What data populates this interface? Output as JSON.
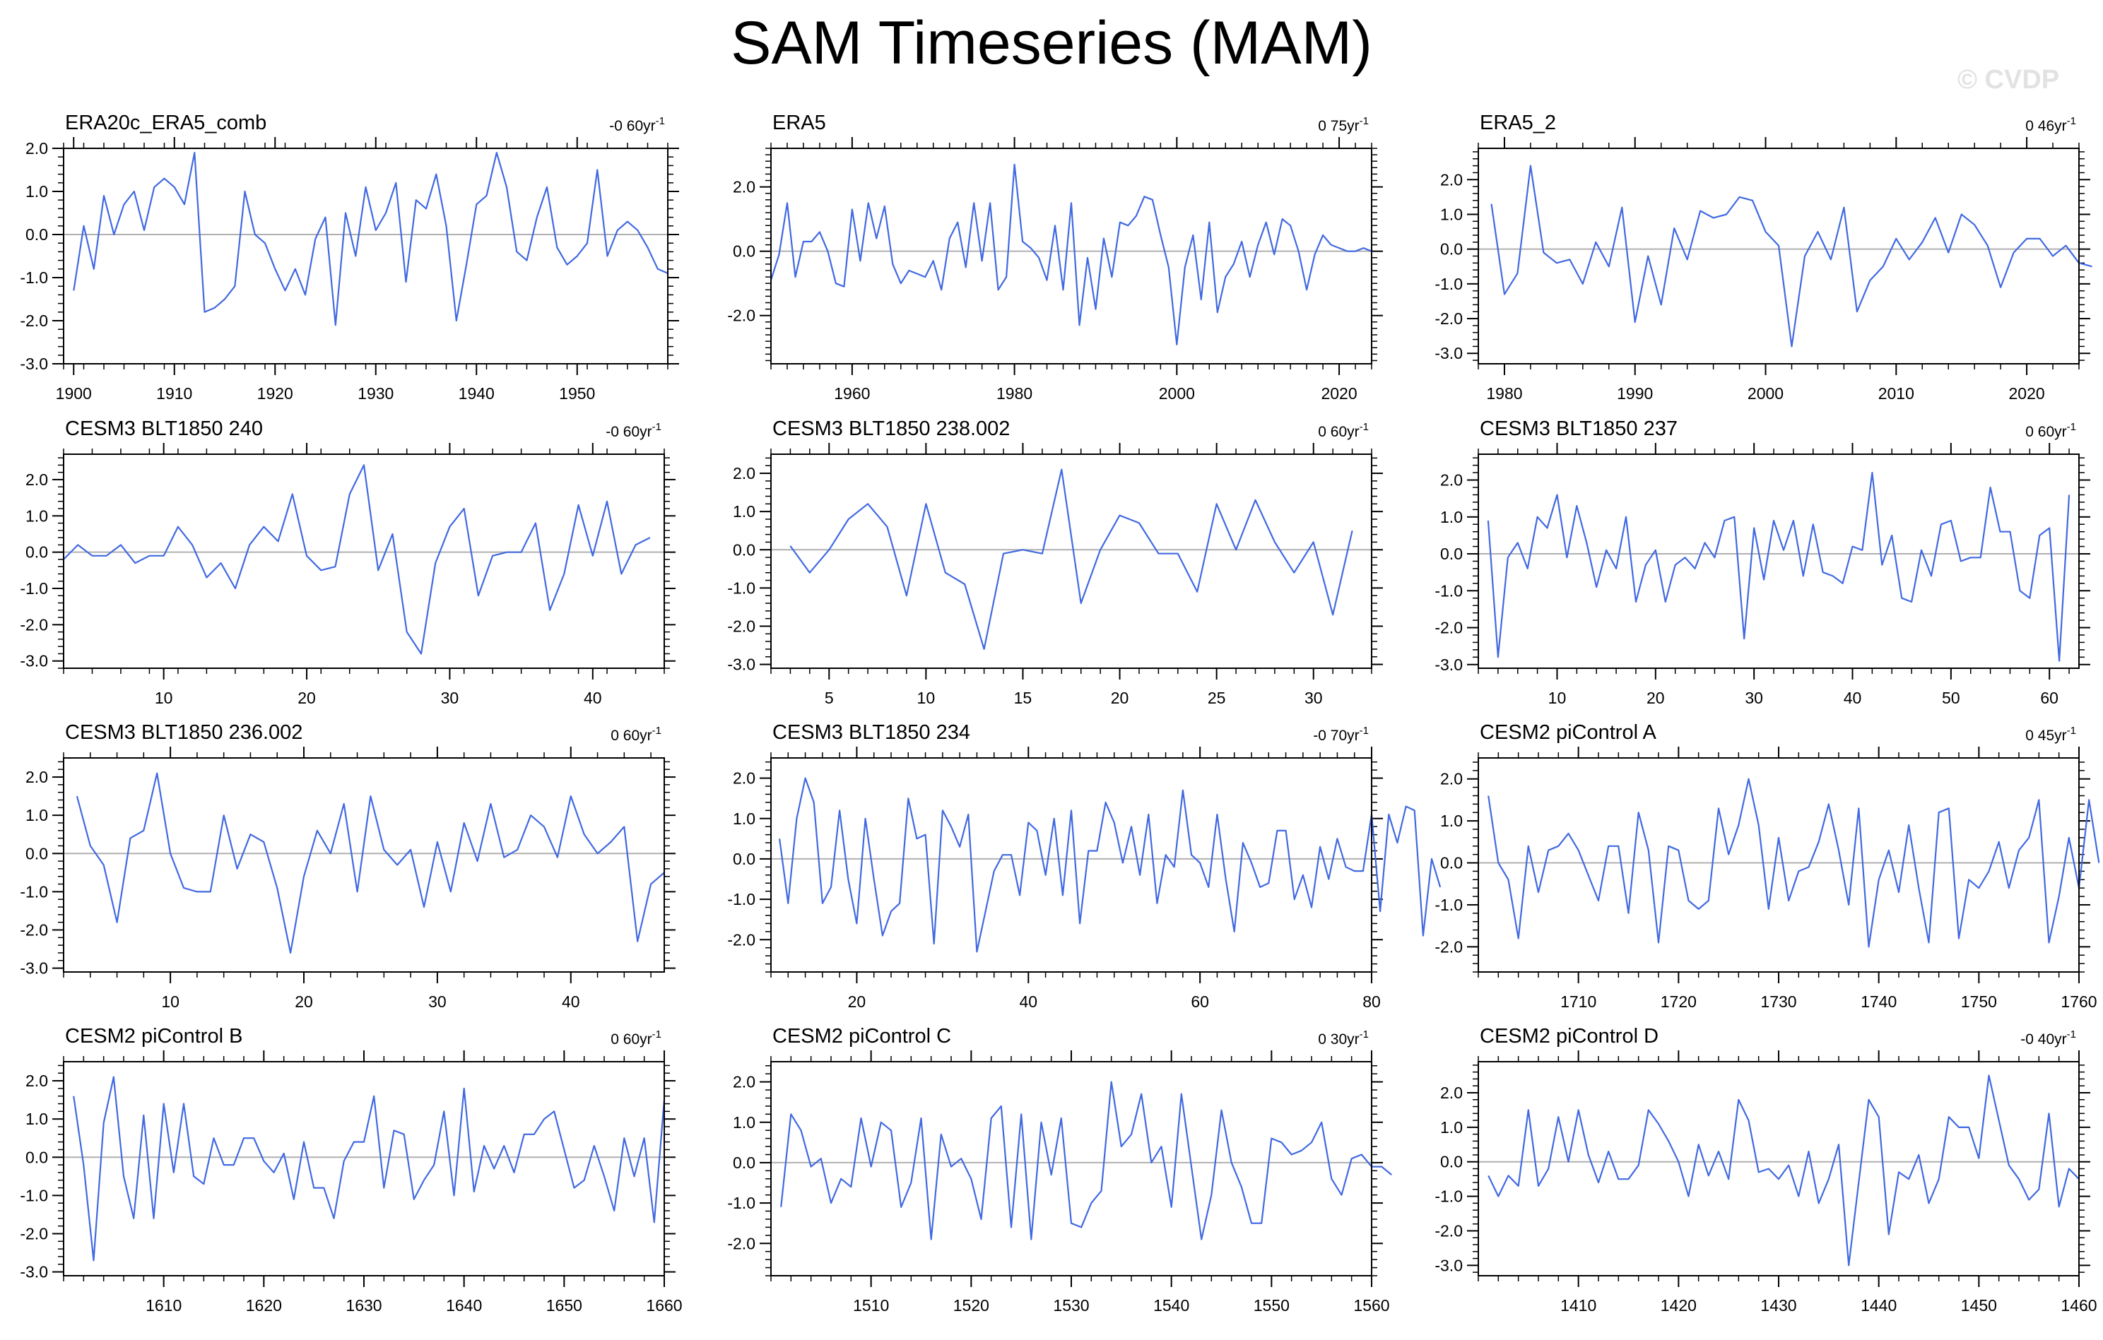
{
  "title": "SAM Timeseries (MAM)",
  "watermark": "© CVDP",
  "colors": {
    "line": "#4169e1",
    "zero": "#b0b0b0",
    "axis": "#000000"
  },
  "chart_data": [
    {
      "type": "line",
      "title": "ERA20c_ERA5_comb",
      "trend": "-0 60yr",
      "trend_sup": "-1",
      "xlim": [
        1899,
        1959
      ],
      "ylim": [
        -3,
        2
      ],
      "yticks": [
        2,
        1,
        0,
        -1,
        -2,
        -3
      ],
      "ytick_labels": [
        "2.0",
        "1.0",
        "0.0",
        "-1.0",
        "-2.0",
        "-3.0"
      ],
      "xticks": [
        1900,
        1910,
        1920,
        1930,
        1940,
        1950
      ],
      "x_start": 1900,
      "values": [
        -1.3,
        0.2,
        -0.8,
        0.9,
        0.0,
        0.7,
        1.0,
        0.1,
        1.1,
        1.3,
        1.1,
        0.7,
        1.9,
        -1.8,
        -1.7,
        -1.5,
        -1.2,
        1.0,
        0.0,
        -0.2,
        -0.8,
        -1.3,
        -0.8,
        -1.4,
        -0.1,
        0.4,
        -2.1,
        0.5,
        -0.5,
        1.1,
        0.1,
        0.5,
        1.2,
        -1.1,
        0.8,
        0.6,
        1.4,
        0.2,
        -2.0,
        -0.7,
        0.7,
        0.9,
        1.9,
        1.1,
        -0.4,
        -0.6,
        0.4,
        1.1,
        -0.3,
        -0.7,
        -0.5,
        -0.2,
        1.5,
        -0.5,
        0.1,
        0.3,
        0.1,
        -0.3,
        -0.8,
        -0.9
      ]
    },
    {
      "type": "line",
      "title": "ERA5",
      "trend": "0 75yr",
      "trend_sup": "-1",
      "xlim": [
        1950,
        2024
      ],
      "ylim": [
        -3.5,
        3.2
      ],
      "yticks": [
        2,
        0,
        -2
      ],
      "ytick_labels": [
        "2.0",
        "0.0",
        "-2.0"
      ],
      "xticks": [
        1960,
        1980,
        2000,
        2020
      ],
      "x_start": 1950,
      "values": [
        -0.9,
        -0.1,
        1.5,
        -0.8,
        0.3,
        0.3,
        0.6,
        0.0,
        -1.0,
        -1.1,
        1.3,
        -0.3,
        1.5,
        0.4,
        1.4,
        -0.4,
        -1.0,
        -0.6,
        -0.7,
        -0.8,
        -0.3,
        -1.2,
        0.4,
        0.9,
        -0.5,
        1.5,
        -0.3,
        1.5,
        -1.2,
        -0.8,
        2.7,
        0.3,
        0.1,
        -0.2,
        -0.9,
        0.8,
        -1.2,
        1.5,
        -2.3,
        -0.2,
        -1.8,
        0.4,
        -0.8,
        0.9,
        0.8,
        1.1,
        1.7,
        1.6,
        0.5,
        -0.5,
        -2.9,
        -0.5,
        0.5,
        -1.5,
        0.9,
        -1.9,
        -0.8,
        -0.4,
        0.3,
        -0.8,
        0.2,
        0.9,
        -0.1,
        1.0,
        0.8,
        0.0,
        -1.2,
        -0.1,
        0.5,
        0.2,
        0.1,
        0.0,
        0.0,
        0.1,
        0.0
      ]
    },
    {
      "type": "line",
      "title": "ERA5_2",
      "trend": "0 46yr",
      "trend_sup": "-1",
      "xlim": [
        1978,
        2024
      ],
      "ylim": [
        -3.3,
        2.9
      ],
      "yticks": [
        2,
        1,
        0,
        -1,
        -2,
        -3
      ],
      "ytick_labels": [
        "2.0",
        "1.0",
        "0.0",
        "-1.0",
        "-2.0",
        "-3.0"
      ],
      "xticks": [
        1980,
        1990,
        2000,
        2010,
        2020
      ],
      "x_start": 1979,
      "values": [
        1.3,
        -1.3,
        -0.7,
        2.4,
        -0.1,
        -0.4,
        -0.3,
        -1.0,
        0.2,
        -0.5,
        1.2,
        -2.1,
        -0.2,
        -1.6,
        0.6,
        -0.3,
        1.1,
        0.9,
        1.0,
        1.5,
        1.4,
        0.5,
        0.1,
        -2.8,
        -0.2,
        0.5,
        -0.3,
        1.2,
        -1.8,
        -0.9,
        -0.5,
        0.3,
        -0.3,
        0.2,
        0.9,
        -0.1,
        1.0,
        0.7,
        0.1,
        -1.1,
        -0.1,
        0.3,
        0.3,
        -0.2,
        0.1,
        -0.4,
        -0.5
      ]
    },
    {
      "type": "line",
      "title": "CESM3 BLT1850 240",
      "trend": "-0 60yr",
      "trend_sup": "-1",
      "xlim": [
        3,
        45
      ],
      "ylim": [
        -3.2,
        2.7
      ],
      "yticks": [
        2,
        1,
        0,
        -1,
        -2,
        -3
      ],
      "ytick_labels": [
        "2.0",
        "1.0",
        "0.0",
        "-1.0",
        "-2.0",
        "-3.0"
      ],
      "xticks": [
        10,
        20,
        30,
        40
      ],
      "x_start": 3,
      "values": [
        -0.2,
        0.2,
        -0.1,
        -0.1,
        0.2,
        -0.3,
        -0.1,
        -0.1,
        0.7,
        0.2,
        -0.7,
        -0.3,
        -1.0,
        0.2,
        0.7,
        0.3,
        1.6,
        -0.1,
        -0.5,
        -0.4,
        1.6,
        2.4,
        -0.5,
        0.5,
        -2.2,
        -2.8,
        -0.3,
        0.7,
        1.2,
        -1.2,
        -0.1,
        0.0,
        0.0,
        0.8,
        -1.6,
        -0.6,
        1.3,
        -0.1,
        1.4,
        -0.6,
        0.2,
        0.4
      ]
    },
    {
      "type": "line",
      "title": "CESM3 BLT1850 238.002",
      "trend": "0 60yr",
      "trend_sup": "-1",
      "xlim": [
        2,
        33
      ],
      "ylim": [
        -3.1,
        2.5
      ],
      "yticks": [
        2,
        1,
        0,
        -1,
        -2,
        -3
      ],
      "ytick_labels": [
        "2.0",
        "1.0",
        "0.0",
        "-1.0",
        "-2.0",
        "-3.0"
      ],
      "xticks": [
        5,
        10,
        15,
        20,
        25,
        30
      ],
      "x_start": 3,
      "values": [
        0.1,
        -0.6,
        0.0,
        0.8,
        1.2,
        0.6,
        -1.2,
        1.2,
        -0.6,
        -0.9,
        -2.6,
        -0.1,
        0.0,
        -0.1,
        2.1,
        -1.4,
        0.0,
        0.9,
        0.7,
        -0.1,
        -0.1,
        -1.1,
        1.2,
        0.0,
        1.3,
        0.2,
        -0.6,
        0.2,
        -1.7,
        0.5
      ]
    },
    {
      "type": "line",
      "title": "CESM3 BLT1850 237",
      "trend": "0 60yr",
      "trend_sup": "-1",
      "xlim": [
        2,
        63
      ],
      "ylim": [
        -3.1,
        2.7
      ],
      "yticks": [
        2,
        1,
        0,
        -1,
        -2,
        -3
      ],
      "ytick_labels": [
        "2.0",
        "1.0",
        "0.0",
        "-1.0",
        "-2.0",
        "-3.0"
      ],
      "xticks": [
        10,
        20,
        30,
        40,
        50,
        60
      ],
      "x_start": 3,
      "values": [
        0.9,
        -2.8,
        -0.1,
        0.3,
        -0.4,
        1.0,
        0.7,
        1.6,
        -0.1,
        1.3,
        0.3,
        -0.9,
        0.1,
        -0.4,
        1.0,
        -1.3,
        -0.3,
        0.1,
        -1.3,
        -0.3,
        -0.1,
        -0.4,
        0.3,
        -0.1,
        0.9,
        1.0,
        -2.3,
        0.7,
        -0.7,
        0.9,
        0.1,
        0.9,
        -0.6,
        0.8,
        -0.5,
        -0.6,
        -0.8,
        0.2,
        0.1,
        2.2,
        -0.3,
        0.5,
        -1.2,
        -1.3,
        0.1,
        -0.6,
        0.8,
        0.9,
        -0.2,
        -0.1,
        -0.1,
        1.8,
        0.6,
        0.6,
        -1.0,
        -1.2,
        0.5,
        0.7,
        -2.9,
        1.6
      ]
    },
    {
      "type": "line",
      "title": "CESM3 BLT1850 236.002",
      "trend": "0 60yr",
      "trend_sup": "-1",
      "xlim": [
        2,
        47
      ],
      "ylim": [
        -3.1,
        2.5
      ],
      "yticks": [
        2,
        1,
        0,
        -1,
        -2,
        -3
      ],
      "ytick_labels": [
        "2.0",
        "1.0",
        "0.0",
        "-1.0",
        "-2.0",
        "-3.0"
      ],
      "xticks": [
        10,
        20,
        30,
        40
      ],
      "x_start": 3,
      "values": [
        1.5,
        0.2,
        -0.3,
        -1.8,
        0.4,
        0.6,
        2.1,
        0.0,
        -0.9,
        -1.0,
        -1.0,
        1.0,
        -0.4,
        0.5,
        0.3,
        -0.9,
        -2.6,
        -0.6,
        0.6,
        0.0,
        1.3,
        -1.0,
        1.5,
        0.1,
        -0.3,
        0.1,
        -1.4,
        0.3,
        -1.0,
        0.8,
        -0.2,
        1.3,
        -0.1,
        0.1,
        1.0,
        0.7,
        -0.1,
        1.5,
        0.5,
        0.0,
        0.3,
        0.7,
        -2.3,
        -0.8,
        -0.5
      ]
    },
    {
      "type": "line",
      "title": "CESM3 BLT1850 234",
      "trend": "-0 70yr",
      "trend_sup": "-1",
      "xlim": [
        10,
        80
      ],
      "ylim": [
        -2.8,
        2.5
      ],
      "yticks": [
        2,
        1,
        0,
        -1,
        -2
      ],
      "ytick_labels": [
        "2.0",
        "1.0",
        "0.0",
        "-1.0",
        "-2.0"
      ],
      "xticks": [
        20,
        40,
        60,
        80
      ],
      "x_start": 11,
      "values": [
        0.5,
        -1.1,
        1.0,
        2.0,
        1.4,
        -1.1,
        -0.7,
        1.2,
        -0.5,
        -1.6,
        1.0,
        -0.5,
        -1.9,
        -1.3,
        -1.1,
        1.5,
        0.5,
        0.6,
        -2.1,
        1.2,
        0.8,
        0.3,
        1.1,
        -2.3,
        -1.3,
        -0.3,
        0.1,
        0.1,
        -0.9,
        0.9,
        0.7,
        -0.4,
        1.0,
        -0.9,
        1.2,
        -1.6,
        0.2,
        0.2,
        1.4,
        0.9,
        -0.1,
        0.8,
        -0.4,
        1.1,
        -1.1,
        0.1,
        -0.2,
        1.7,
        0.1,
        -0.1,
        -0.7,
        1.1,
        -0.5,
        -1.8,
        0.4,
        -0.1,
        -0.7,
        -0.6,
        0.7,
        0.7,
        -1.0,
        -0.4,
        -1.2,
        0.3,
        -0.5,
        0.5,
        -0.2,
        -0.3,
        -0.3,
        1.1,
        -1.3,
        1.1,
        0.4,
        1.3,
        1.2,
        -1.9,
        0.0,
        -0.7
      ]
    },
    {
      "type": "line",
      "title": "CESM2 piControl A",
      "trend": "0 45yr",
      "trend_sup": "-1",
      "xlim": [
        1700,
        1760
      ],
      "ylim": [
        -2.6,
        2.5
      ],
      "yticks": [
        2,
        1,
        0,
        -1,
        -2
      ],
      "ytick_labels": [
        "2.0",
        "1.0",
        "0.0",
        "-1.0",
        "-2.0"
      ],
      "xticks": [
        1710,
        1720,
        1730,
        1740,
        1750,
        1760
      ],
      "x_start": 1701,
      "values": [
        1.6,
        0.0,
        -0.4,
        -1.8,
        0.4,
        -0.7,
        0.3,
        0.4,
        0.7,
        0.3,
        -0.3,
        -0.9,
        0.4,
        0.4,
        -1.2,
        1.2,
        0.3,
        -1.9,
        0.4,
        0.3,
        -0.9,
        -1.1,
        -0.9,
        1.3,
        0.2,
        0.9,
        2.0,
        0.9,
        -1.1,
        0.6,
        -0.9,
        -0.2,
        -0.1,
        0.5,
        1.4,
        0.3,
        -1.0,
        1.3,
        -2.0,
        -0.4,
        0.3,
        -0.7,
        0.9,
        -0.6,
        -1.9,
        1.2,
        1.3,
        -1.8,
        -0.4,
        -0.6,
        -0.2,
        0.5,
        -0.6,
        0.3,
        0.6,
        1.5,
        -1.9,
        -0.8,
        0.6,
        -0.6,
        1.5,
        0.0
      ]
    },
    {
      "type": "line",
      "title": "CESM2 piControl B",
      "trend": "0 60yr",
      "trend_sup": "-1",
      "xlim": [
        1600,
        1660
      ],
      "ylim": [
        -3.1,
        2.5
      ],
      "yticks": [
        2,
        1,
        0,
        -1,
        -2,
        -3
      ],
      "ytick_labels": [
        "2.0",
        "1.0",
        "0.0",
        "-1.0",
        "-2.0",
        "-3.0"
      ],
      "xticks": [
        1610,
        1620,
        1630,
        1640,
        1650,
        1660
      ],
      "x_start": 1601,
      "values": [
        1.6,
        -0.2,
        -2.7,
        0.9,
        2.1,
        -0.5,
        -1.6,
        1.1,
        -1.6,
        1.4,
        -0.4,
        1.4,
        -0.5,
        -0.7,
        0.5,
        -0.2,
        -0.2,
        0.5,
        0.5,
        -0.1,
        -0.4,
        0.1,
        -1.1,
        0.4,
        -0.8,
        -0.8,
        -1.6,
        -0.1,
        0.4,
        0.4,
        1.6,
        -0.8,
        0.7,
        0.6,
        -1.1,
        -0.6,
        -0.2,
        1.2,
        -1.0,
        1.8,
        -0.9,
        0.3,
        -0.3,
        0.3,
        -0.4,
        0.6,
        0.6,
        1.0,
        1.2,
        0.2,
        -0.8,
        -0.6,
        0.3,
        -0.5,
        -1.4,
        0.5,
        -0.5,
        0.5,
        -1.7,
        1.5
      ]
    },
    {
      "type": "line",
      "title": "CESM2 piControl C",
      "trend": "0 30yr",
      "trend_sup": "-1",
      "xlim": [
        1500,
        1560
      ],
      "ylim": [
        -2.8,
        2.5
      ],
      "yticks": [
        2,
        1,
        0,
        -1,
        -2
      ],
      "ytick_labels": [
        "2.0",
        "1.0",
        "0.0",
        "-1.0",
        "-2.0"
      ],
      "xticks": [
        1510,
        1520,
        1530,
        1540,
        1550,
        1560
      ],
      "x_start": 1501,
      "values": [
        -1.1,
        1.2,
        0.8,
        -0.1,
        0.1,
        -1.0,
        -0.4,
        -0.6,
        1.1,
        -0.1,
        1.0,
        0.8,
        -1.1,
        -0.5,
        1.1,
        -1.9,
        0.7,
        -0.1,
        0.1,
        -0.4,
        -1.4,
        1.1,
        1.4,
        -1.6,
        1.2,
        -1.9,
        1.0,
        -0.3,
        1.1,
        -1.5,
        -1.6,
        -1.0,
        -0.7,
        2.0,
        0.4,
        0.7,
        1.7,
        0.0,
        0.4,
        -1.1,
        1.7,
        -0.1,
        -1.9,
        -0.8,
        1.3,
        0.0,
        -0.6,
        -1.5,
        -1.5,
        0.6,
        0.5,
        0.2,
        0.3,
        0.5,
        1.0,
        -0.4,
        -0.8,
        0.1,
        0.2,
        -0.1,
        -0.1,
        -0.3
      ]
    },
    {
      "type": "line",
      "title": "CESM2 piControl D",
      "trend": "-0 40yr",
      "trend_sup": "-1",
      "xlim": [
        1400,
        1460
      ],
      "ylim": [
        -3.3,
        2.9
      ],
      "yticks": [
        2,
        1,
        0,
        -1,
        -2,
        -3
      ],
      "ytick_labels": [
        "2.0",
        "1.0",
        "0.0",
        "-1.0",
        "-2.0",
        "-3.0"
      ],
      "xticks": [
        1410,
        1420,
        1430,
        1440,
        1450,
        1460
      ],
      "x_start": 1401,
      "values": [
        -0.4,
        -1.0,
        -0.4,
        -0.7,
        1.5,
        -0.7,
        -0.2,
        1.3,
        0.0,
        1.5,
        0.2,
        -0.6,
        0.3,
        -0.5,
        -0.5,
        -0.1,
        1.5,
        1.1,
        0.6,
        0.0,
        -1.0,
        0.5,
        -0.4,
        0.3,
        -0.5,
        1.8,
        1.2,
        -0.3,
        -0.2,
        -0.5,
        -0.1,
        -1.0,
        0.3,
        -1.2,
        -0.5,
        0.5,
        -3.0,
        -0.6,
        1.8,
        1.3,
        -2.1,
        -0.3,
        -0.5,
        0.2,
        -1.2,
        -0.5,
        1.3,
        1.0,
        1.0,
        0.1,
        2.5,
        1.2,
        -0.1,
        -0.5,
        -1.1,
        -0.8,
        1.4,
        -1.3,
        -0.2,
        -0.5
      ]
    }
  ]
}
